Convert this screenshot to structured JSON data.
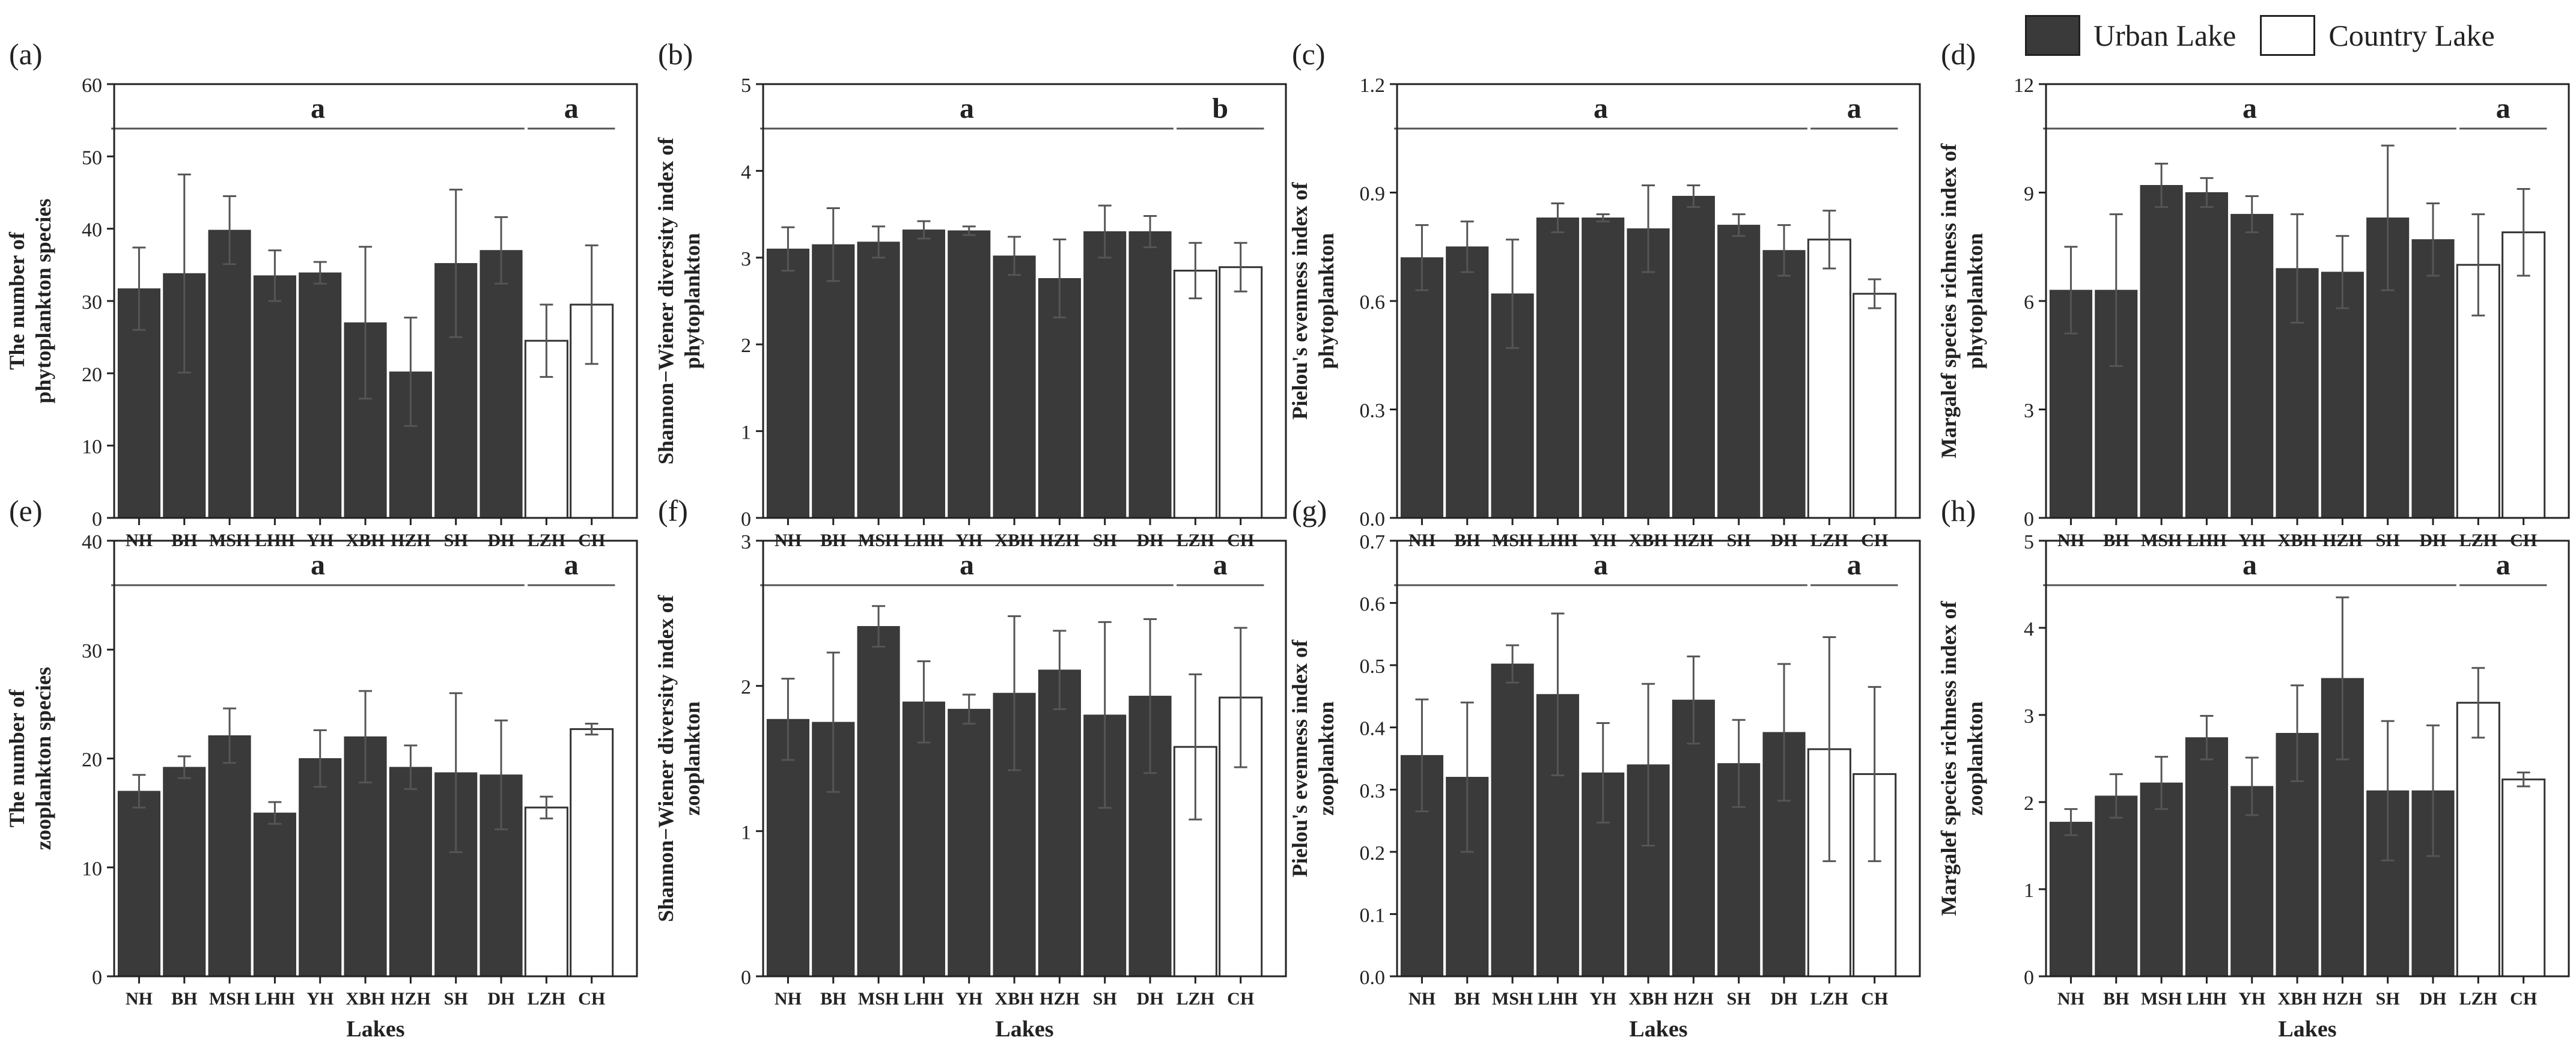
{
  "legend": [
    {
      "label": "Urban Lake",
      "color": "#3a3a3a"
    },
    {
      "label": "Country Lake",
      "color": "#ffffff"
    }
  ],
  "style": {
    "urban_color": "#3a3a3a",
    "country_color": "#ffffff",
    "line_color": "#555555"
  },
  "chart_data": [
    {
      "id": "a",
      "panel_label": "(a)",
      "type": "bar",
      "categories": [
        "NH",
        "BH",
        "MSH",
        "LHH",
        "YH",
        "XBH",
        "HZH",
        "SH",
        "DH",
        "LZH",
        "CH"
      ],
      "group": [
        "urban",
        "urban",
        "urban",
        "urban",
        "urban",
        "urban",
        "urban",
        "urban",
        "urban",
        "country",
        "country"
      ],
      "values": [
        31.7,
        33.8,
        39.8,
        33.5,
        33.9,
        27.0,
        20.2,
        35.2,
        37.0,
        24.5,
        29.5
      ],
      "errors": [
        5.7,
        13.7,
        4.7,
        3.5,
        1.5,
        10.5,
        7.5,
        10.2,
        4.6,
        5.0,
        8.2
      ],
      "ylabel": "The number of\nphytoplankton species",
      "ylim": [
        0,
        60
      ],
      "yticks": [
        "0",
        "10",
        "20",
        "30",
        "40",
        "50",
        "60"
      ],
      "sig": [
        {
          "letter": "a"
        },
        {
          "letter": "a"
        }
      ],
      "xlabel": ""
    },
    {
      "id": "b",
      "panel_label": "(b)",
      "type": "bar",
      "categories": [
        "NH",
        "BH",
        "MSH",
        "LHH",
        "YH",
        "XBH",
        "HZH",
        "SH",
        "DH",
        "LZH",
        "CH"
      ],
      "group": [
        "urban",
        "urban",
        "urban",
        "urban",
        "urban",
        "urban",
        "urban",
        "urban",
        "urban",
        "country",
        "country"
      ],
      "values": [
        3.1,
        3.15,
        3.18,
        3.32,
        3.31,
        3.02,
        2.76,
        3.3,
        3.3,
        2.85,
        2.89
      ],
      "errors": [
        0.25,
        0.42,
        0.18,
        0.1,
        0.05,
        0.22,
        0.45,
        0.3,
        0.18,
        0.32,
        0.28
      ],
      "ylabel": "Shannon−Wiener diversity index of\nphytoplankton",
      "ylim": [
        0,
        5
      ],
      "yticks": [
        "0",
        "1",
        "2",
        "3",
        "4",
        "5"
      ],
      "sig": [
        {
          "letter": "a"
        },
        {
          "letter": "b"
        }
      ],
      "xlabel": ""
    },
    {
      "id": "c",
      "panel_label": "(c)",
      "type": "bar",
      "categories": [
        "NH",
        "BH",
        "MSH",
        "LHH",
        "YH",
        "XBH",
        "HZH",
        "SH",
        "DH",
        "LZH",
        "CH"
      ],
      "group": [
        "urban",
        "urban",
        "urban",
        "urban",
        "urban",
        "urban",
        "urban",
        "urban",
        "urban",
        "country",
        "country"
      ],
      "values": [
        0.72,
        0.75,
        0.62,
        0.83,
        0.83,
        0.8,
        0.89,
        0.81,
        0.74,
        0.77,
        0.62
      ],
      "errors": [
        0.09,
        0.07,
        0.15,
        0.04,
        0.01,
        0.12,
        0.03,
        0.03,
        0.07,
        0.08,
        0.04
      ],
      "ylabel": "Pielou's evenness index of\nphytoplankton",
      "ylim": [
        0,
        1.2
      ],
      "yticks": [
        "0.0",
        "0.3",
        "0.6",
        "0.9",
        "1.2"
      ],
      "sig": [
        {
          "letter": "a"
        },
        {
          "letter": "a"
        }
      ],
      "xlabel": ""
    },
    {
      "id": "d",
      "panel_label": "(d)",
      "type": "bar",
      "categories": [
        "NH",
        "BH",
        "MSH",
        "LHH",
        "YH",
        "XBH",
        "HZH",
        "SH",
        "DH",
        "LZH",
        "CH"
      ],
      "group": [
        "urban",
        "urban",
        "urban",
        "urban",
        "urban",
        "urban",
        "urban",
        "urban",
        "urban",
        "country",
        "country"
      ],
      "values": [
        6.3,
        6.3,
        9.2,
        9.0,
        8.4,
        6.9,
        6.8,
        8.3,
        7.7,
        7.0,
        7.9
      ],
      "errors": [
        1.2,
        2.1,
        0.6,
        0.4,
        0.5,
        1.5,
        1.0,
        2.0,
        1.0,
        1.4,
        1.2
      ],
      "ylabel": "Margalef species richness index of\nphytoplankton",
      "ylim": [
        0,
        12
      ],
      "yticks": [
        "0",
        "3",
        "6",
        "9",
        "12"
      ],
      "sig": [
        {
          "letter": "a"
        },
        {
          "letter": "a"
        }
      ],
      "xlabel": ""
    },
    {
      "id": "e",
      "panel_label": "(e)",
      "type": "bar",
      "categories": [
        "NH",
        "BH",
        "MSH",
        "LHH",
        "YH",
        "XBH",
        "HZH",
        "SH",
        "DH",
        "LZH",
        "CH"
      ],
      "group": [
        "urban",
        "urban",
        "urban",
        "urban",
        "urban",
        "urban",
        "urban",
        "urban",
        "urban",
        "country",
        "country"
      ],
      "values": [
        17.0,
        19.2,
        22.1,
        15.0,
        20.0,
        22.0,
        19.2,
        18.7,
        18.5,
        15.5,
        22.7
      ],
      "errors": [
        1.5,
        1.0,
        2.5,
        1.0,
        2.6,
        4.2,
        2.0,
        7.3,
        5.0,
        1.0,
        0.5
      ],
      "ylabel": "The number of\nzooplankton species",
      "ylim": [
        0,
        40
      ],
      "yticks": [
        "0",
        "10",
        "20",
        "30",
        "40"
      ],
      "sig": [
        {
          "letter": "a"
        },
        {
          "letter": "a"
        }
      ],
      "xlabel": "Lakes"
    },
    {
      "id": "f",
      "panel_label": "(f)",
      "type": "bar",
      "categories": [
        "NH",
        "BH",
        "MSH",
        "LHH",
        "YH",
        "XBH",
        "HZH",
        "SH",
        "DH",
        "LZH",
        "CH"
      ],
      "group": [
        "urban",
        "urban",
        "urban",
        "urban",
        "urban",
        "urban",
        "urban",
        "urban",
        "urban",
        "country",
        "country"
      ],
      "values": [
        1.77,
        1.75,
        2.41,
        1.89,
        1.84,
        1.95,
        2.11,
        1.8,
        1.93,
        1.58,
        1.92
      ],
      "errors": [
        0.28,
        0.48,
        0.14,
        0.28,
        0.1,
        0.53,
        0.27,
        0.64,
        0.53,
        0.5,
        0.48
      ],
      "ylabel": "Shannon−Wiener diversity index of\nzooplankton",
      "ylim": [
        0,
        3
      ],
      "yticks": [
        "0",
        "1",
        "2",
        "3"
      ],
      "sig": [
        {
          "letter": "a"
        },
        {
          "letter": "a"
        }
      ],
      "xlabel": "Lakes"
    },
    {
      "id": "g",
      "panel_label": "(g)",
      "type": "bar",
      "categories": [
        "NH",
        "BH",
        "MSH",
        "LHH",
        "YH",
        "XBH",
        "HZH",
        "SH",
        "DH",
        "LZH",
        "CH"
      ],
      "group": [
        "urban",
        "urban",
        "urban",
        "urban",
        "urban",
        "urban",
        "urban",
        "urban",
        "urban",
        "country",
        "country"
      ],
      "values": [
        0.355,
        0.32,
        0.502,
        0.453,
        0.327,
        0.34,
        0.444,
        0.342,
        0.392,
        0.365,
        0.325
      ],
      "errors": [
        0.09,
        0.12,
        0.03,
        0.13,
        0.08,
        0.13,
        0.07,
        0.07,
        0.11,
        0.18,
        0.14
      ],
      "ylabel": "Pielou's evenness index of\nzooplankton",
      "ylim": [
        0,
        0.7
      ],
      "yticks": [
        "0.0",
        "0.1",
        "0.2",
        "0.3",
        "0.4",
        "0.5",
        "0.6",
        "0.7"
      ],
      "sig": [
        {
          "letter": "a"
        },
        {
          "letter": "a"
        }
      ],
      "xlabel": "Lakes"
    },
    {
      "id": "h",
      "panel_label": "(h)",
      "type": "bar",
      "categories": [
        "NH",
        "BH",
        "MSH",
        "LHH",
        "YH",
        "XBH",
        "HZH",
        "SH",
        "DH",
        "LZH",
        "CH"
      ],
      "group": [
        "urban",
        "urban",
        "urban",
        "urban",
        "urban",
        "urban",
        "urban",
        "urban",
        "urban",
        "country",
        "country"
      ],
      "values": [
        1.77,
        2.07,
        2.22,
        2.74,
        2.18,
        2.79,
        3.42,
        2.13,
        2.13,
        3.14,
        2.26
      ],
      "errors": [
        0.15,
        0.25,
        0.3,
        0.25,
        0.33,
        0.55,
        0.93,
        0.8,
        0.75,
        0.4,
        0.08
      ],
      "ylabel": "Margalef species richness index of\nzooplankton",
      "ylim": [
        0,
        5
      ],
      "yticks": [
        "0",
        "1",
        "2",
        "3",
        "4",
        "5"
      ],
      "sig": [
        {
          "letter": "a"
        },
        {
          "letter": "a"
        }
      ],
      "xlabel": "Lakes"
    }
  ]
}
